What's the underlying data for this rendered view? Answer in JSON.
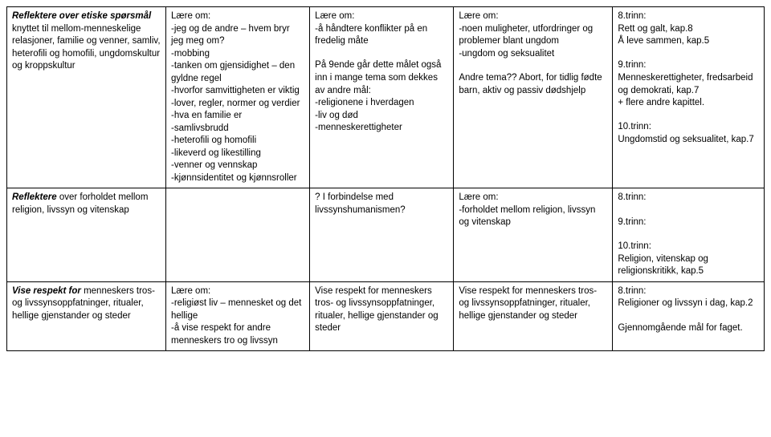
{
  "rows": [
    {
      "c1": {
        "lead": "Reflektere over etiske spørsmål",
        "rest": " knyttet til mellom-menneskelige relasjoner, familie og venner, samliv, heterofili og homofili, ungdomskultur og kroppskultur"
      },
      "c2": {
        "intro": "Lære om:",
        "body": "-jeg og de andre – hvem bryr jeg meg om?\n-mobbing\n-tanken om gjensidighet – den gyldne regel\n-hvorfor samvittigheten er viktig\n-lover, regler, normer og verdier\n-hva en familie er\n-samlivsbrudd\n-heterofili og homofili\n-likeverd og likestilling\n-venner og vennskap\n-kjønnsidentitet og kjønnsroller"
      },
      "c3": {
        "intro": "Lære om:",
        "p1": "-å håndtere konflikter på en fredelig måte",
        "p2": "På 9ende går dette målet også inn i mange tema som dekkes av andre mål:\n-religionene i hverdagen\n-liv og død\n-menneskerettigheter"
      },
      "c4": {
        "intro": "Lære om:",
        "p1": "-noen muligheter, utfordringer og problemer blant ungdom\n-ungdom og seksualitet",
        "p2": "Andre tema?? Abort, for tidlig fødte barn, aktiv og passiv dødshjelp"
      },
      "c5": {
        "p1": "8.trinn:\nRett og galt, kap.8\nÅ leve sammen, kap.5",
        "p2": "9.trinn:\nMenneskerettigheter, fredsarbeid og demokrati, kap.7\n+ flere andre kapittel.",
        "p3": "10.trinn:\nUngdomstid og seksualitet, kap.7"
      }
    },
    {
      "c1": {
        "lead": "Reflektere",
        "rest": " over forholdet mellom religion, livssyn og vitenskap"
      },
      "c2": {
        "body": ""
      },
      "c3": {
        "p1": "? I forbindelse med livssynshumanismen?"
      },
      "c4": {
        "intro": "Lære om:",
        "p1": "-forholdet mellom religion, livssyn og vitenskap"
      },
      "c5": {
        "p1": "8.trinn:",
        "p2": "9.trinn:",
        "p3": "10.trinn:\nReligion, vitenskap og religionskritikk, kap.5"
      }
    },
    {
      "c1": {
        "lead": "Vise respekt for",
        "rest": " menneskers tros- og livssynsoppfatninger, ritualer, hellige gjenstander og steder"
      },
      "c2": {
        "intro": "Lære om:",
        "body": "-religiøst liv – mennesket og det hellige\n-å vise respekt for andre menneskers tro og livssyn"
      },
      "c3": {
        "p1": "Vise respekt for menneskers tros- og livssynsoppfatninger, ritualer, hellige gjenstander og steder"
      },
      "c4": {
        "p1": "Vise respekt for menneskers tros- og livssynsoppfatninger, ritualer, hellige gjenstander og steder"
      },
      "c5": {
        "p1": "8.trinn:\nReligioner og livssyn i dag, kap.2",
        "p2": "Gjennomgående mål for faget."
      }
    }
  ]
}
